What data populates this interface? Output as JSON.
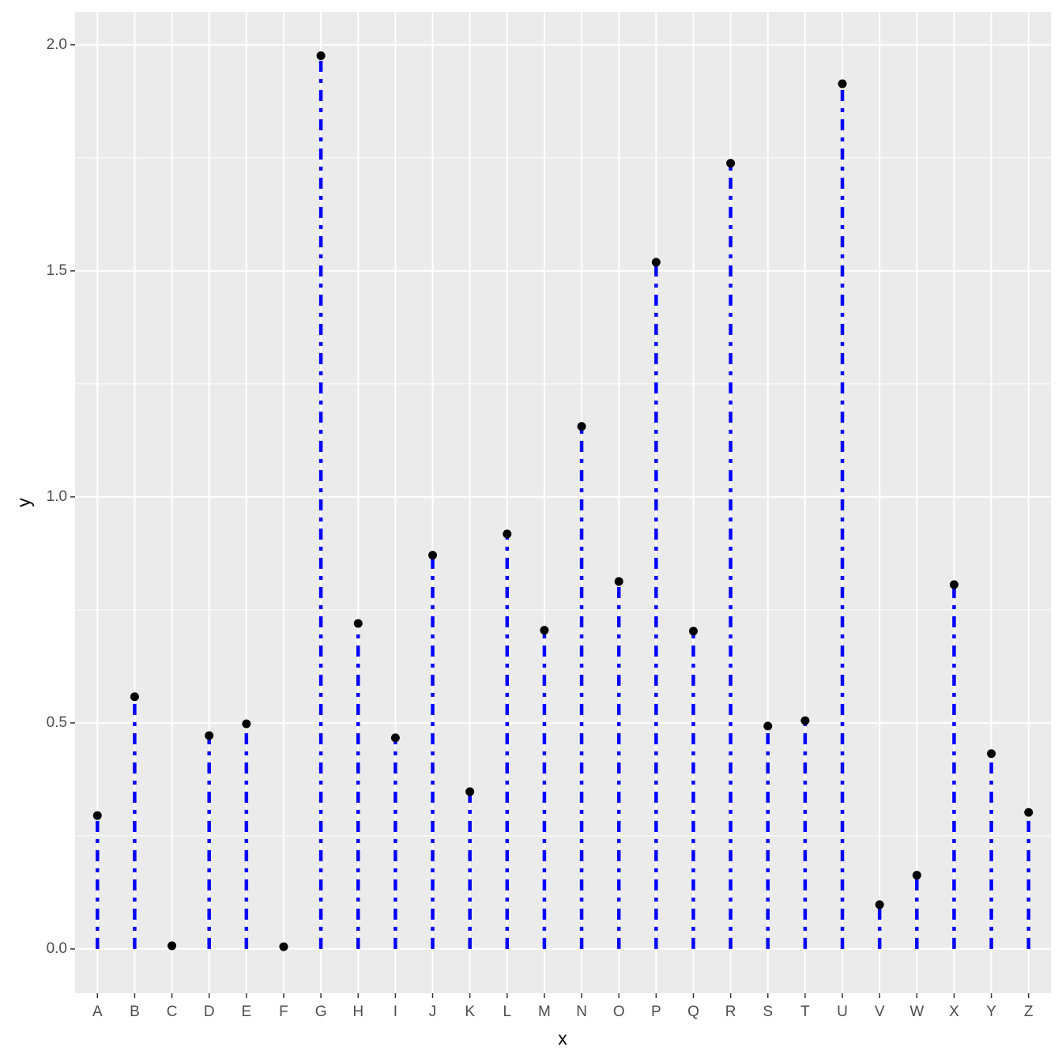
{
  "chart_data": {
    "type": "lollipop",
    "x_label": "x",
    "y_label": "y",
    "categories": [
      "A",
      "B",
      "C",
      "D",
      "E",
      "F",
      "G",
      "H",
      "I",
      "J",
      "K",
      "L",
      "M",
      "N",
      "O",
      "P",
      "Q",
      "R",
      "S",
      "T",
      "U",
      "V",
      "W",
      "X",
      "Y",
      "Z"
    ],
    "values": [
      0.295,
      0.558,
      0.007,
      0.472,
      0.498,
      0.005,
      1.976,
      0.72,
      0.467,
      0.871,
      0.348,
      0.918,
      0.705,
      1.156,
      0.813,
      1.519,
      0.703,
      1.738,
      0.493,
      0.505,
      1.914,
      0.098,
      0.163,
      0.806,
      0.432,
      0.302
    ],
    "line_color": "#0000ff",
    "point_color": "#000000",
    "ylim": [
      -0.098,
      2.073
    ],
    "yticks": [
      {
        "value": 0,
        "label": "0.0"
      },
      0.5,
      {
        "value": 1,
        "label": "1.0"
      },
      1.5,
      {
        "value": 2,
        "label": "2.0"
      }
    ],
    "grid": true
  }
}
